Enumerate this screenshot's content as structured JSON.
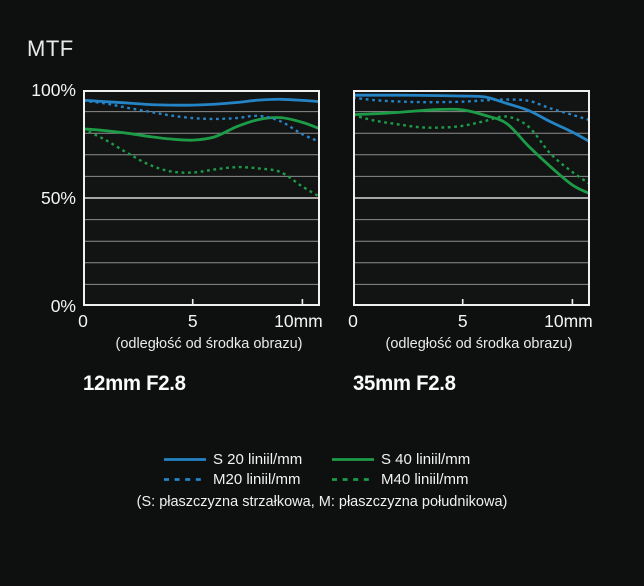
{
  "figure": {
    "title": "MTF"
  },
  "colors": {
    "background": "#0e0f0f",
    "plot_background": "#121313",
    "grid": "#8d8d8d",
    "grid_major": "#d8d8d8",
    "border": "#f0f0f0",
    "text": "#f0f0f0",
    "blue": "#2484c6",
    "green": "#1d9c47"
  },
  "legend": {
    "items": [
      {
        "id": "s20",
        "label": "S 20 liniil/mm",
        "color": "#2484c6",
        "dashed": false
      },
      {
        "id": "s40",
        "label": "S 40 liniil/mm",
        "color": "#1d9c47",
        "dashed": false
      },
      {
        "id": "m20",
        "label": "M20 liniil/mm",
        "color": "#2484c6",
        "dashed": true
      },
      {
        "id": "m40",
        "label": "M40 liniil/mm",
        "color": "#1d9c47",
        "dashed": true
      }
    ],
    "caption": "(S: płaszczyzna strzałkowa, M: płaszczyzna południkowa)"
  },
  "chart_data": [
    {
      "type": "line",
      "title": "12mm F2.8",
      "xlabel": "(odległość od środka obrazu)",
      "xlim": [
        0,
        10.8
      ],
      "ylim": [
        0,
        100
      ],
      "grid_step": 10,
      "show_y_labels": true,
      "x_ticks": [
        {
          "v": 0,
          "label": "0"
        },
        {
          "v": 5,
          "label": "5"
        },
        {
          "v": 10,
          "label": "10mm"
        }
      ],
      "y_ticks": [
        {
          "v": 100,
          "label": "100%"
        },
        {
          "v": 50,
          "label": "50%"
        },
        {
          "v": 0,
          "label": "0%"
        }
      ],
      "x": [
        0,
        1,
        2,
        3,
        4,
        5,
        6,
        7,
        8,
        9,
        10,
        10.8
      ],
      "series": [
        {
          "id": "s20",
          "name": "S 20 liniil/mm",
          "color": "#2484c6",
          "dashed": false,
          "values": [
            95.3,
            94.6,
            94.0,
            93.3,
            93.0,
            93.0,
            93.4,
            94.2,
            95.3,
            95.7,
            95.2,
            94.6
          ]
        },
        {
          "id": "s40",
          "name": "S 40 liniil/mm",
          "color": "#1d9c47",
          "dashed": false,
          "values": [
            82.0,
            81.2,
            80.0,
            78.5,
            77.3,
            76.8,
            78.3,
            83.0,
            86.3,
            87.2,
            85.0,
            82.0
          ]
        },
        {
          "id": "m20",
          "name": "M20 liniil/mm",
          "color": "#2484c6",
          "dashed": true,
          "values": [
            95.0,
            93.8,
            91.8,
            90.0,
            88.2,
            87.0,
            86.6,
            87.0,
            88.0,
            85.5,
            79.5,
            76.0
          ]
        },
        {
          "id": "m40",
          "name": "M40 liniil/mm",
          "color": "#1d9c47",
          "dashed": true,
          "values": [
            82.0,
            77.0,
            71.0,
            65.5,
            62.3,
            61.8,
            63.2,
            64.3,
            63.7,
            62.0,
            55.3,
            50.5
          ]
        }
      ]
    },
    {
      "type": "line",
      "title": "35mm F2.8",
      "xlabel": "(odległość od środka obrazu)",
      "xlim": [
        0,
        10.8
      ],
      "ylim": [
        0,
        100
      ],
      "grid_step": 10,
      "show_y_labels": false,
      "x_ticks": [
        {
          "v": 0,
          "label": "0"
        },
        {
          "v": 5,
          "label": "5"
        },
        {
          "v": 10,
          "label": "10mm"
        }
      ],
      "y_ticks": [
        {
          "v": 100,
          "label": "100%"
        },
        {
          "v": 50,
          "label": "50%"
        },
        {
          "v": 0,
          "label": "0%"
        }
      ],
      "x": [
        0,
        1,
        2,
        3,
        4,
        5,
        6,
        7,
        8,
        9,
        10,
        10.8
      ],
      "series": [
        {
          "id": "s20",
          "name": "S 20 liniil/mm",
          "color": "#2484c6",
          "dashed": false,
          "values": [
            97.6,
            97.6,
            97.6,
            97.5,
            97.4,
            97.2,
            96.8,
            93.8,
            90.5,
            85.3,
            80.5,
            76.0
          ]
        },
        {
          "id": "s40",
          "name": "S 40 liniil/mm",
          "color": "#1d9c47",
          "dashed": false,
          "values": [
            88.6,
            89.0,
            89.6,
            90.4,
            91.0,
            90.8,
            88.3,
            84.5,
            74.0,
            64.5,
            56.0,
            52.0
          ]
        },
        {
          "id": "m20",
          "name": "M20 liniil/mm",
          "color": "#2484c6",
          "dashed": true,
          "values": [
            96.4,
            95.3,
            94.7,
            94.4,
            94.4,
            94.6,
            95.2,
            95.6,
            95.0,
            91.5,
            88.5,
            86.0
          ]
        },
        {
          "id": "m40",
          "name": "M40 liniil/mm",
          "color": "#1d9c47",
          "dashed": true,
          "values": [
            88.4,
            85.8,
            84.2,
            82.8,
            82.6,
            83.4,
            85.6,
            87.7,
            83.0,
            70.5,
            62.0,
            56.5
          ]
        }
      ]
    }
  ]
}
